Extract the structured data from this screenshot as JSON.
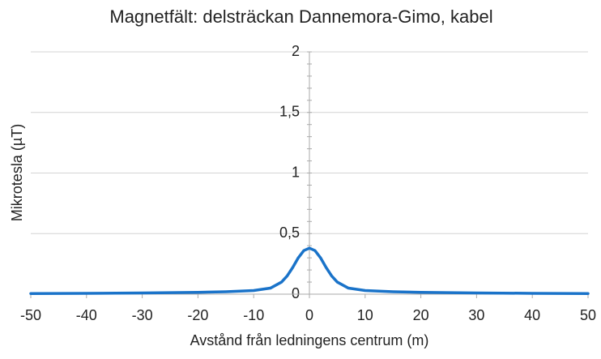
{
  "chart_data": {
    "type": "line",
    "title": "Magnetfält: delsträckan Dannemora-Gimo, kabel",
    "x_label": "Avstånd från ledningens centrum (m)",
    "y_label": "Mikrotesla (µT)",
    "x": [
      -50,
      -40,
      -30,
      -20,
      -15,
      -10,
      -7,
      -5,
      -4,
      -3,
      -2,
      -1,
      0,
      1,
      2,
      3,
      4,
      5,
      7,
      10,
      15,
      20,
      30,
      40,
      50
    ],
    "series": [
      {
        "name": "Magnetfält",
        "color": "#1a73c9",
        "values": [
          0.005,
          0.007,
          0.01,
          0.015,
          0.02,
          0.03,
          0.05,
          0.1,
          0.15,
          0.22,
          0.3,
          0.36,
          0.38,
          0.36,
          0.3,
          0.22,
          0.15,
          0.1,
          0.05,
          0.03,
          0.02,
          0.015,
          0.01,
          0.007,
          0.005
        ]
      }
    ],
    "xlim": [
      -50,
      50
    ],
    "xticks": [
      -50,
      -40,
      -30,
      -20,
      -10,
      0,
      10,
      20,
      30,
      40,
      50
    ],
    "ylim": [
      0,
      2
    ],
    "yticks": [
      0,
      {
        "value": 0.5,
        "label": "0,5"
      },
      1,
      {
        "value": 1.5,
        "label": "1,5"
      },
      2
    ],
    "grid": true
  }
}
